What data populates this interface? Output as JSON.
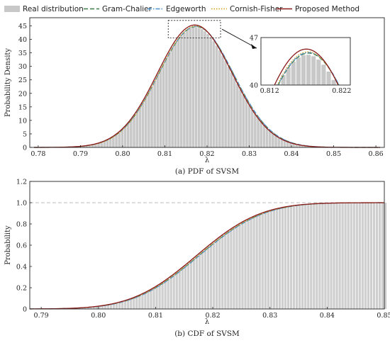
{
  "legend": [
    {
      "label": "Real distribution",
      "color": "#c8c8c8",
      "style": "bar"
    },
    {
      "label": "Gram-Chalier",
      "color": "#3a7d44",
      "style": "dash"
    },
    {
      "label": "Edgeworth",
      "color": "#4a8fd0",
      "style": "dashdot"
    },
    {
      "label": "Cornish-Fisher",
      "color": "#d4a017",
      "style": "dot"
    },
    {
      "label": "Proposed Method",
      "color": "#8b1a1a",
      "style": "solid"
    }
  ],
  "chart_data": [
    {
      "type": "bar",
      "caption": "(a) PDF of SVSM",
      "xlabel": "λ",
      "ylabel": "Probability Density",
      "xlim": [
        0.778,
        0.862
      ],
      "ylim": [
        0,
        48
      ],
      "xticks": [
        "0.78",
        "0.79",
        "0.80",
        "0.81",
        "0.82",
        "0.83",
        "0.84",
        "0.85",
        "0.86"
      ],
      "yticks": [
        "0",
        "5",
        "10",
        "15",
        "20",
        "25",
        "30",
        "35",
        "40",
        "45"
      ],
      "distribution": {
        "mean": 0.8172,
        "std": 0.00885,
        "peak": 45.2
      },
      "series": [
        {
          "name": "Gram-Chalier",
          "mean": 0.8174,
          "std": 0.0089,
          "peak": 44.7
        },
        {
          "name": "Edgeworth",
          "mean": 0.8174,
          "std": 0.0089,
          "peak": 44.8
        },
        {
          "name": "Cornish-Fisher",
          "mean": 0.8173,
          "std": 0.0088,
          "peak": 44.9
        },
        {
          "name": "Proposed Method",
          "mean": 0.8171,
          "std": 0.00885,
          "peak": 45.3
        }
      ],
      "inset": {
        "xlim": [
          0.8108,
          0.8232
        ],
        "ylim": [
          40,
          47
        ],
        "xticks": [
          "0.812",
          "0.822"
        ],
        "yticks": [
          "40",
          "47"
        ]
      }
    },
    {
      "type": "bar",
      "caption": "(b) CDF of SVSM",
      "xlabel": "λ",
      "ylabel": "Probability",
      "xlim": [
        0.788,
        0.85
      ],
      "ylim": [
        0,
        1.2
      ],
      "xticks": [
        "0.79",
        "0.80",
        "0.81",
        "0.82",
        "0.83",
        "0.84",
        "0.85"
      ],
      "yticks": [
        "0",
        "0.2",
        "0.4",
        "0.6",
        "0.8",
        "1.0",
        "1.2"
      ],
      "reference_line": 1.0,
      "distribution": {
        "mean": 0.8172,
        "std": 0.00885
      },
      "series": [
        {
          "name": "Gram-Chalier",
          "mean": 0.8175,
          "std": 0.0089
        },
        {
          "name": "Edgeworth",
          "mean": 0.8176,
          "std": 0.0089
        },
        {
          "name": "Cornish-Fisher",
          "mean": 0.8174,
          "std": 0.0089
        },
        {
          "name": "Proposed Method",
          "mean": 0.8171,
          "std": 0.00885
        }
      ]
    }
  ]
}
